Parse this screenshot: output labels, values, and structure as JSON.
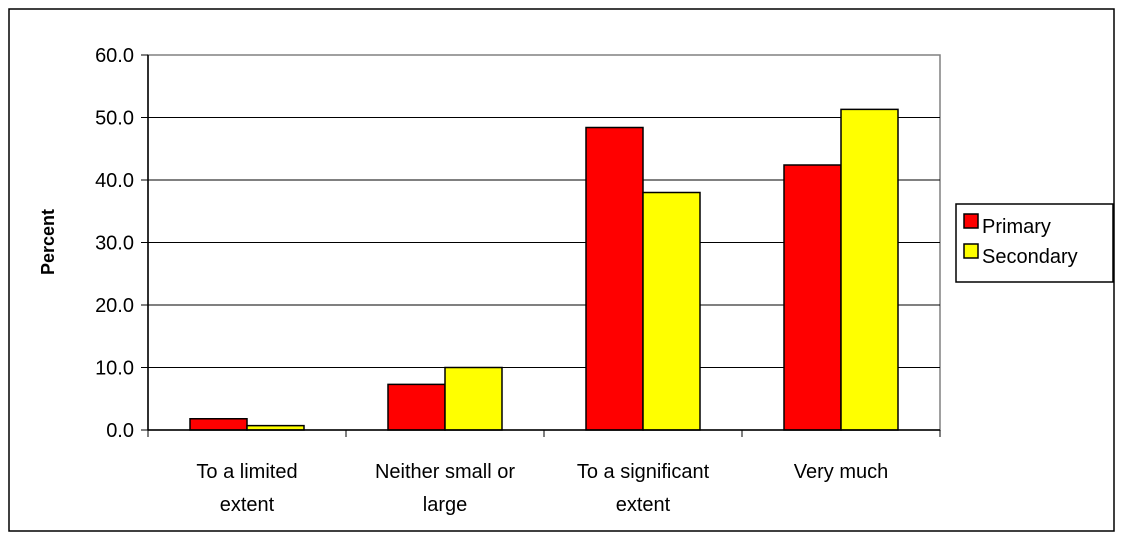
{
  "chart_data": {
    "type": "bar",
    "title": "",
    "xlabel": "",
    "ylabel": "Percent",
    "ylim": [
      0,
      60
    ],
    "yticks": [
      "0.0",
      "10.0",
      "20.0",
      "30.0",
      "40.0",
      "50.0",
      "60.0"
    ],
    "categories": [
      [
        "To a limited",
        "extent"
      ],
      [
        "Neither small or",
        "large"
      ],
      [
        "To a significant",
        "extent"
      ],
      [
        "Very much"
      ]
    ],
    "series": [
      {
        "name": "Primary",
        "color": "#ff0000",
        "values": [
          1.8,
          7.3,
          48.4,
          42.4
        ]
      },
      {
        "name": "Secondary",
        "color": "#ffff00",
        "values": [
          0.7,
          10.0,
          38.0,
          51.3
        ]
      }
    ],
    "grid": "horizontal",
    "legend": "right"
  }
}
